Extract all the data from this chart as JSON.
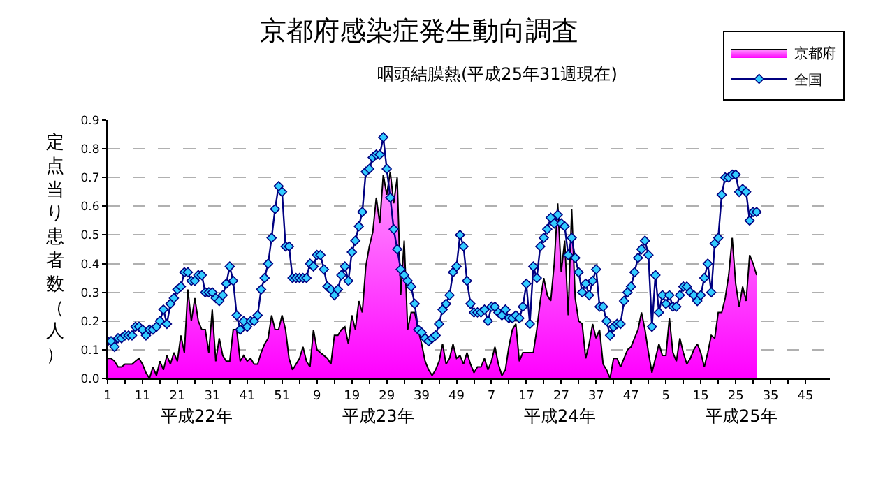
{
  "chart_data": {
    "type": "area",
    "title": "京都府感染症発生動向調査",
    "subtitle": "咽頭結膜熱(平成25年31週現在)",
    "ylabel": "定点当り患者数（人）",
    "annotations": [
      "平成22年",
      "平成23年",
      "平成24年",
      "平成25年"
    ],
    "categories": [
      "1",
      null,
      null,
      null,
      null,
      null,
      null,
      null,
      null,
      null,
      "11",
      null,
      null,
      null,
      null,
      null,
      null,
      null,
      null,
      null,
      "21",
      null,
      null,
      null,
      null,
      null,
      null,
      null,
      null,
      null,
      "31",
      null,
      null,
      null,
      null,
      null,
      null,
      null,
      null,
      null,
      "41",
      null,
      null,
      null,
      null,
      null,
      null,
      null,
      null,
      null,
      "51",
      null,
      null,
      null,
      null,
      null,
      null,
      null,
      null,
      null,
      "9",
      null,
      null,
      null,
      null,
      null,
      null,
      null,
      null,
      null,
      "19",
      null,
      null,
      null,
      null,
      null,
      null,
      null,
      null,
      null,
      "29",
      null,
      null,
      null,
      null,
      null,
      null,
      null,
      null,
      null,
      "39",
      null,
      null,
      null,
      null,
      null,
      null,
      null,
      null,
      null,
      "49",
      null,
      null,
      null,
      null,
      null,
      null,
      null,
      null,
      null,
      "7",
      null,
      null,
      null,
      null,
      null,
      null,
      null,
      null,
      null,
      "17",
      null,
      null,
      null,
      null,
      null,
      null,
      null,
      null,
      null,
      "27",
      null,
      null,
      null,
      null,
      null,
      null,
      null,
      null,
      null,
      "37",
      null,
      null,
      null,
      null,
      null,
      null,
      null,
      null,
      null,
      "47",
      null,
      null,
      null,
      null,
      null,
      null,
      null,
      null,
      null,
      "5",
      null,
      null,
      null,
      null,
      null,
      null,
      null,
      null,
      null,
      "15",
      null,
      null,
      null,
      null,
      null,
      null,
      null,
      null,
      null,
      "25",
      null,
      null,
      null,
      null,
      null,
      null,
      null,
      null,
      null,
      "35",
      null,
      null,
      null,
      null,
      null,
      null,
      null,
      null,
      null,
      "45",
      null,
      null,
      null,
      null,
      null,
      null,
      null
    ],
    "series": [
      {
        "name": "京都府",
        "color": "#ff00ff",
        "values": [
          0.07,
          0.07,
          0.06,
          0.04,
          0.04,
          0.05,
          0.05,
          0.05,
          0.06,
          0.07,
          0.05,
          0.02,
          0.0,
          0.04,
          0.01,
          0.06,
          0.03,
          0.08,
          0.05,
          0.09,
          0.06,
          0.15,
          0.09,
          0.31,
          0.2,
          0.28,
          0.2,
          0.17,
          0.17,
          0.09,
          0.24,
          0.06,
          0.14,
          0.08,
          0.06,
          0.06,
          0.17,
          0.17,
          0.06,
          0.08,
          0.06,
          0.07,
          0.05,
          0.05,
          0.09,
          0.12,
          0.14,
          0.22,
          0.17,
          0.17,
          0.22,
          0.17,
          0.07,
          0.03,
          0.05,
          0.07,
          0.11,
          0.06,
          0.04,
          0.17,
          0.1,
          0.09,
          0.08,
          0.07,
          0.05,
          0.15,
          0.15,
          0.17,
          0.18,
          0.12,
          0.22,
          0.17,
          0.27,
          0.23,
          0.39,
          0.46,
          0.51,
          0.63,
          0.54,
          0.71,
          0.64,
          0.72,
          0.61,
          0.7,
          0.29,
          0.48,
          0.17,
          0.23,
          0.23,
          0.17,
          0.12,
          0.06,
          0.03,
          0.01,
          0.03,
          0.06,
          0.12,
          0.05,
          0.07,
          0.12,
          0.07,
          0.08,
          0.05,
          0.09,
          0.05,
          0.02,
          0.04,
          0.04,
          0.07,
          0.03,
          0.06,
          0.11,
          0.05,
          0.01,
          0.03,
          0.11,
          0.17,
          0.19,
          0.06,
          0.09,
          0.09,
          0.09,
          0.09,
          0.17,
          0.27,
          0.35,
          0.29,
          0.27,
          0.4,
          0.61,
          0.37,
          0.48,
          0.22,
          0.59,
          0.28,
          0.2,
          0.19,
          0.07,
          0.12,
          0.19,
          0.14,
          0.17,
          0.05,
          0.03,
          0.0,
          0.07,
          0.07,
          0.04,
          0.07,
          0.1,
          0.11,
          0.14,
          0.17,
          0.23,
          0.17,
          0.09,
          0.02,
          0.07,
          0.12,
          0.08,
          0.08,
          0.21,
          0.09,
          0.06,
          0.14,
          0.09,
          0.05,
          0.07,
          0.1,
          0.12,
          0.09,
          0.04,
          0.09,
          0.15,
          0.14,
          0.23,
          0.23,
          0.28,
          0.36,
          0.49,
          0.33,
          0.25,
          0.32,
          0.27,
          0.43,
          0.4,
          0.36,
          null,
          null,
          null,
          null,
          null,
          null,
          null,
          null,
          null,
          null,
          null,
          null,
          null,
          null,
          null,
          null,
          null,
          null,
          null,
          null,
          null
        ]
      },
      {
        "name": "全国",
        "type": "line",
        "marker": "diamond",
        "color": "#33ccff",
        "values": [
          0.13,
          0.13,
          0.11,
          0.14,
          0.14,
          0.15,
          0.15,
          0.15,
          0.18,
          0.18,
          0.17,
          0.15,
          0.17,
          0.17,
          0.18,
          0.2,
          0.24,
          0.19,
          0.26,
          0.28,
          0.31,
          0.32,
          0.37,
          0.37,
          0.34,
          0.34,
          0.36,
          0.36,
          0.3,
          0.3,
          0.3,
          0.28,
          0.27,
          0.29,
          0.33,
          0.39,
          0.34,
          0.22,
          0.17,
          0.2,
          0.18,
          0.2,
          0.2,
          0.22,
          0.31,
          0.35,
          0.4,
          0.49,
          0.59,
          0.67,
          0.65,
          0.46,
          0.46,
          0.35,
          0.35,
          0.35,
          0.35,
          0.35,
          0.4,
          0.39,
          0.43,
          0.43,
          0.38,
          0.32,
          0.31,
          0.29,
          0.31,
          0.36,
          0.39,
          0.34,
          0.44,
          0.48,
          0.53,
          0.58,
          0.72,
          0.73,
          0.77,
          0.78,
          0.78,
          0.84,
          0.73,
          0.63,
          0.52,
          0.45,
          0.38,
          0.36,
          0.34,
          0.32,
          0.26,
          0.17,
          0.16,
          0.14,
          0.13,
          0.14,
          0.15,
          0.19,
          0.24,
          0.26,
          0.29,
          0.37,
          0.39,
          0.5,
          0.46,
          0.34,
          0.26,
          0.23,
          0.23,
          0.23,
          0.24,
          0.2,
          0.25,
          0.25,
          0.23,
          0.22,
          0.24,
          0.21,
          0.21,
          0.22,
          0.21,
          0.25,
          0.33,
          0.19,
          0.39,
          0.35,
          0.46,
          0.49,
          0.52,
          0.56,
          0.54,
          0.57,
          0.54,
          0.53,
          0.43,
          0.49,
          0.42,
          0.37,
          0.3,
          0.33,
          0.29,
          0.34,
          0.38,
          0.25,
          0.25,
          0.2,
          0.15,
          0.18,
          0.19,
          0.19,
          0.27,
          0.3,
          0.32,
          0.37,
          0.42,
          0.45,
          0.48,
          0.43,
          0.18,
          0.36,
          0.23,
          0.29,
          0.26,
          0.29,
          0.25,
          0.25,
          0.29,
          0.32,
          0.32,
          0.3,
          0.29,
          0.27,
          0.29,
          0.35,
          0.4,
          0.3,
          0.47,
          0.49,
          0.64,
          0.7,
          0.7,
          0.71,
          0.71,
          0.65,
          0.66,
          0.65,
          0.55,
          0.58,
          0.58,
          null,
          null,
          null,
          null,
          null,
          null,
          null,
          null,
          null,
          null,
          null,
          null,
          null,
          null,
          null,
          null,
          null,
          null,
          null,
          null,
          null
        ]
      }
    ],
    "ylim": [
      0,
      0.9
    ],
    "yticks": [
      {
        "value": 0,
        "label": "0.0"
      },
      {
        "value": 0.1,
        "label": "0.1"
      },
      {
        "value": 0.2,
        "label": "0.2"
      },
      {
        "value": 0.3,
        "label": "0.3"
      },
      {
        "value": 0.4,
        "label": "0.4"
      },
      {
        "value": 0.5,
        "label": "0.5"
      },
      {
        "value": 0.6,
        "label": "0.6"
      },
      {
        "value": 0.7,
        "label": "0.7"
      },
      {
        "value": 0.8,
        "label": "0.8"
      },
      {
        "value": 0.9,
        "label": "0.9"
      }
    ],
    "grid": "y",
    "legend": "top right"
  }
}
